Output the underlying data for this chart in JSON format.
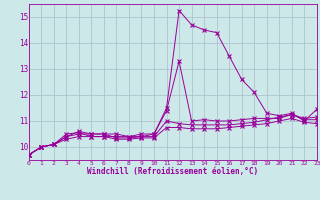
{
  "xlabel": "Windchill (Refroidissement éolien,°C)",
  "background_color": "#cce8e8",
  "line_color": "#990099",
  "grid_color": "#aabbcc",
  "x_values": [
    0,
    1,
    2,
    3,
    4,
    5,
    6,
    7,
    8,
    9,
    10,
    11,
    12,
    13,
    14,
    15,
    16,
    17,
    18,
    19,
    20,
    21,
    22,
    23
  ],
  "series": [
    [
      9.7,
      10.0,
      10.1,
      10.5,
      10.55,
      10.4,
      10.4,
      10.4,
      10.4,
      10.5,
      10.5,
      11.5,
      15.25,
      14.7,
      14.5,
      14.4,
      13.5,
      12.6,
      12.1,
      11.3,
      11.2,
      11.3,
      11.0,
      11.45
    ],
    [
      9.7,
      10.0,
      10.1,
      10.4,
      10.6,
      10.5,
      10.5,
      10.5,
      10.4,
      10.4,
      10.5,
      11.4,
      13.3,
      11.0,
      11.05,
      11.0,
      11.0,
      11.05,
      11.1,
      11.1,
      11.1,
      11.25,
      11.1,
      11.15
    ],
    [
      9.7,
      10.0,
      10.1,
      10.4,
      10.5,
      10.5,
      10.5,
      10.35,
      10.35,
      10.4,
      10.4,
      11.0,
      10.9,
      10.85,
      10.85,
      10.85,
      10.85,
      10.9,
      10.95,
      11.05,
      11.15,
      11.25,
      11.05,
      11.05
    ],
    [
      9.7,
      10.0,
      10.1,
      10.3,
      10.4,
      10.4,
      10.4,
      10.3,
      10.3,
      10.35,
      10.35,
      10.75,
      10.75,
      10.7,
      10.7,
      10.7,
      10.75,
      10.8,
      10.85,
      10.9,
      11.0,
      11.1,
      10.95,
      10.9
    ]
  ],
  "ylim": [
    9.5,
    15.5
  ],
  "yticks": [
    10,
    11,
    12,
    13,
    14,
    15
  ],
  "xlim": [
    0,
    23
  ]
}
